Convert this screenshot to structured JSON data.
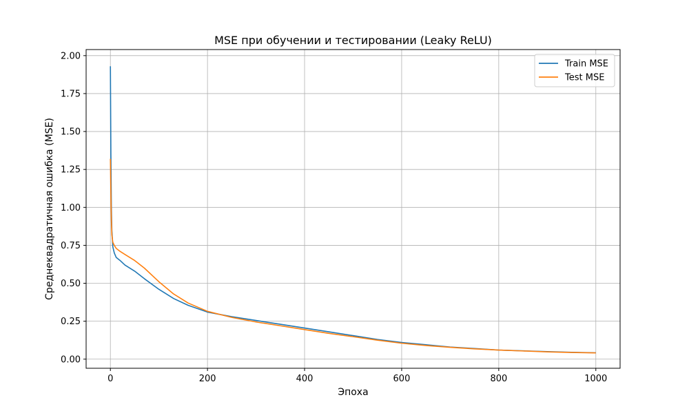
{
  "chart_data": {
    "type": "line",
    "title": "MSE при обучении и тестировании (Leaky ReLU)",
    "xlabel": "Эпоха",
    "ylabel": "Среднеквадратичная ошибка (MSE)",
    "xlim": [
      -50,
      1050
    ],
    "ylim": [
      -0.06,
      2.04
    ],
    "xticks": [
      0,
      200,
      400,
      600,
      800,
      1000
    ],
    "yticks": [
      0.0,
      0.25,
      0.5,
      0.75,
      1.0,
      1.25,
      1.5,
      1.75,
      2.0
    ],
    "grid": true,
    "legend_position": "top-right",
    "series": [
      {
        "name": "Train MSE",
        "color": "#1f77b4",
        "x": [
          0,
          1,
          2,
          3,
          5,
          8,
          12,
          20,
          30,
          50,
          70,
          100,
          130,
          160,
          200,
          250,
          300,
          350,
          400,
          450,
          500,
          550,
          600,
          650,
          700,
          750,
          800,
          850,
          900,
          950,
          1000
        ],
        "y": [
          1.93,
          1.35,
          1.0,
          0.85,
          0.74,
          0.7,
          0.67,
          0.65,
          0.62,
          0.58,
          0.53,
          0.46,
          0.4,
          0.355,
          0.31,
          0.28,
          0.255,
          0.23,
          0.205,
          0.18,
          0.155,
          0.13,
          0.11,
          0.095,
          0.08,
          0.07,
          0.06,
          0.055,
          0.05,
          0.045,
          0.042
        ]
      },
      {
        "name": "Test MSE",
        "color": "#ff7f0e",
        "x": [
          0,
          1,
          2,
          3,
          5,
          8,
          12,
          20,
          30,
          50,
          70,
          100,
          130,
          160,
          200,
          250,
          300,
          350,
          400,
          450,
          500,
          550,
          600,
          650,
          700,
          750,
          800,
          850,
          900,
          950,
          1000
        ],
        "y": [
          1.32,
          1.1,
          0.92,
          0.82,
          0.77,
          0.75,
          0.73,
          0.71,
          0.69,
          0.65,
          0.6,
          0.51,
          0.43,
          0.37,
          0.315,
          0.275,
          0.245,
          0.22,
          0.195,
          0.17,
          0.148,
          0.125,
          0.105,
          0.09,
          0.078,
          0.068,
          0.06,
          0.054,
          0.048,
          0.044,
          0.041
        ]
      }
    ]
  }
}
